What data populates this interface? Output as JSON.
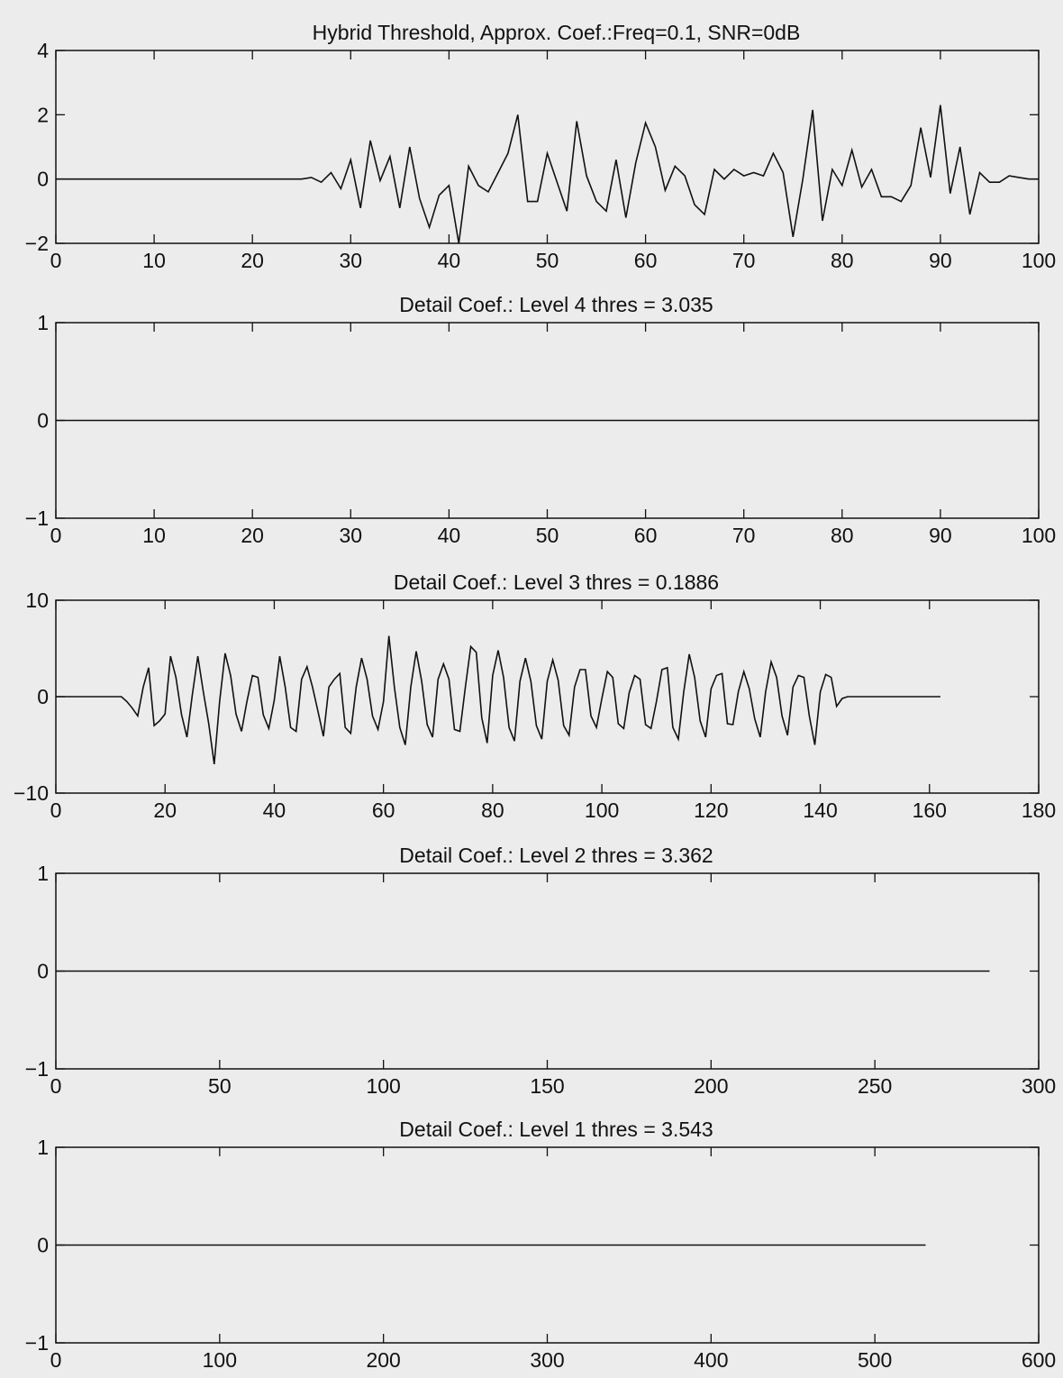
{
  "background": "#ececec",
  "line_color": "#111111",
  "chart_data": [
    {
      "type": "line",
      "title": "Hybrid Threshold, Approx. Coef.:Freq=0.1, SNR=0dB",
      "xlim": [
        0,
        100
      ],
      "ylim": [
        -2,
        4
      ],
      "xticks": [
        0,
        10,
        20,
        30,
        40,
        50,
        60,
        70,
        80,
        90,
        100
      ],
      "yticks": [
        -2,
        0,
        2,
        4
      ],
      "grid": false,
      "x": [
        0,
        1,
        2,
        3,
        4,
        5,
        6,
        7,
        8,
        9,
        10,
        11,
        12,
        13,
        14,
        15,
        16,
        17,
        18,
        19,
        20,
        21,
        22,
        23,
        24,
        25,
        26,
        27,
        28,
        29,
        30,
        31,
        32,
        33,
        34,
        35,
        36,
        37,
        38,
        39,
        40,
        41,
        42,
        43,
        44,
        45,
        46,
        47,
        48,
        49,
        50,
        51,
        52,
        53,
        54,
        55,
        56,
        57,
        58,
        59,
        60,
        61,
        62,
        63,
        64,
        65,
        66,
        67,
        68,
        69,
        70,
        71,
        72,
        73,
        74,
        75,
        76,
        77,
        78,
        79,
        80,
        81,
        82,
        83,
        84,
        85,
        86,
        87,
        88,
        89,
        90,
        91,
        92,
        93,
        94,
        95,
        96,
        97,
        98,
        99,
        100
      ],
      "y": [
        0,
        0,
        0,
        0,
        0,
        0,
        0,
        0,
        0,
        0,
        0,
        0,
        0,
        0,
        0,
        0,
        0,
        0,
        0,
        0,
        0,
        0,
        0,
        0,
        0,
        0,
        0.05,
        -0.1,
        0.2,
        -0.3,
        0.6,
        -0.9,
        1.2,
        -0.05,
        0.7,
        -0.9,
        1.0,
        -0.6,
        -1.5,
        -0.5,
        -0.2,
        -2.0,
        0.4,
        -0.2,
        -0.4,
        0.2,
        0.8,
        2.0,
        -0.7,
        -0.7,
        0.8,
        -0.1,
        -1.0,
        1.8,
        0.1,
        -0.7,
        -1.0,
        0.6,
        -1.2,
        0.5,
        1.75,
        1.0,
        -0.35,
        0.4,
        0.1,
        -0.8,
        -1.1,
        0.3,
        0.0,
        0.3,
        0.1,
        0.2,
        0.1,
        0.8,
        0.2,
        -1.8,
        0.0,
        2.15,
        -1.3,
        0.3,
        -0.2,
        0.9,
        -0.25,
        0.3,
        -0.55,
        -0.55,
        -0.7,
        -0.2,
        1.6,
        0.05,
        2.3,
        -0.45,
        1.0,
        -1.1,
        0.2,
        -0.1,
        -0.1,
        0.1,
        0.05,
        0.0,
        0.0
      ]
    },
    {
      "type": "line",
      "title": "Detail Coef.: Level 4 thres = 3.035",
      "xlim": [
        0,
        100
      ],
      "ylim": [
        -1,
        1
      ],
      "xticks": [
        0,
        10,
        20,
        30,
        40,
        50,
        60,
        70,
        80,
        90,
        100
      ],
      "yticks": [
        -1,
        0,
        1
      ],
      "grid": false,
      "x": [
        0,
        100
      ],
      "y": [
        0,
        0
      ]
    },
    {
      "type": "line",
      "title": "Detail Coef.: Level 3 thres = 0.1886",
      "xlim": [
        0,
        180
      ],
      "ylim": [
        -10,
        10
      ],
      "xticks": [
        0,
        20,
        40,
        60,
        80,
        100,
        120,
        140,
        160,
        180
      ],
      "yticks": [
        -10,
        0,
        10
      ],
      "grid": false,
      "x": [
        0,
        12,
        13,
        14,
        15,
        16,
        17,
        18,
        19,
        20,
        21,
        22,
        23,
        24,
        25,
        26,
        27,
        28,
        29,
        30,
        31,
        32,
        33,
        34,
        35,
        36,
        37,
        38,
        39,
        40,
        41,
        42,
        43,
        44,
        45,
        46,
        47,
        48,
        49,
        50,
        51,
        52,
        53,
        54,
        55,
        56,
        57,
        58,
        59,
        60,
        61,
        62,
        63,
        64,
        65,
        66,
        67,
        68,
        69,
        70,
        71,
        72,
        73,
        74,
        75,
        76,
        77,
        78,
        79,
        80,
        81,
        82,
        83,
        84,
        85,
        86,
        87,
        88,
        89,
        90,
        91,
        92,
        93,
        94,
        95,
        96,
        97,
        98,
        99,
        100,
        101,
        102,
        103,
        104,
        105,
        106,
        107,
        108,
        109,
        110,
        111,
        112,
        113,
        114,
        115,
        116,
        117,
        118,
        119,
        120,
        121,
        122,
        123,
        124,
        125,
        126,
        127,
        128,
        129,
        130,
        131,
        132,
        133,
        134,
        135,
        136,
        137,
        138,
        139,
        140,
        141,
        142,
        143,
        144,
        145,
        146,
        162
      ],
      "y": [
        0,
        0,
        -0.5,
        -1.2,
        -2.0,
        1.0,
        3.0,
        -3.0,
        -2.5,
        -1.8,
        4.2,
        2.0,
        -1.8,
        -4.2,
        0.2,
        4.2,
        0.5,
        -2.8,
        -7.0,
        -0.5,
        4.5,
        2.2,
        -1.8,
        -3.6,
        -0.5,
        2.2,
        2.0,
        -1.9,
        -3.3,
        -0.4,
        4.2,
        1.0,
        -3.2,
        -3.6,
        1.8,
        3.1,
        1.0,
        -1.5,
        -4.1,
        1.0,
        1.8,
        2.4,
        -3.2,
        -3.8,
        1.0,
        4.0,
        1.8,
        -2.0,
        -3.4,
        -0.5,
        6.3,
        1.0,
        -3.2,
        -5.0,
        1.0,
        4.7,
        1.6,
        -2.9,
        -4.2,
        1.8,
        3.4,
        1.8,
        -3.4,
        -3.6,
        1.0,
        5.2,
        4.6,
        -2.2,
        -4.8,
        2.2,
        4.8,
        2.0,
        -3.2,
        -4.6,
        1.6,
        4.0,
        1.6,
        -3.0,
        -4.4,
        1.6,
        3.8,
        1.7,
        -3.0,
        -4.0,
        1.0,
        2.8,
        2.8,
        -2.0,
        -3.2,
        -0.2,
        2.6,
        2.0,
        -2.8,
        -3.3,
        0.4,
        2.2,
        1.8,
        -2.9,
        -3.3,
        -0.5,
        2.8,
        3.0,
        -3.2,
        -4.4,
        0.5,
        4.4,
        2.0,
        -2.5,
        -4.2,
        0.8,
        2.2,
        2.4,
        -2.8,
        -2.9,
        0.5,
        2.6,
        0.8,
        -2.3,
        -4.2,
        0.5,
        3.6,
        2.0,
        -2.0,
        -4.0,
        1.0,
        2.2,
        2.0,
        -2.0,
        -5.0,
        0.5,
        2.3,
        2.0,
        -1.0,
        -0.2,
        0,
        0,
        0
      ]
    },
    {
      "type": "line",
      "title": "Detail Coef.: Level 2 thres = 3.362",
      "xlim": [
        0,
        300
      ],
      "ylim": [
        -1,
        1
      ],
      "xticks": [
        0,
        50,
        100,
        150,
        200,
        250,
        300
      ],
      "yticks": [
        -1,
        0,
        1
      ],
      "grid": false,
      "x": [
        0,
        285
      ],
      "y": [
        0,
        0
      ]
    },
    {
      "type": "line",
      "title": "Detail Coef.: Level 1 thres = 3.543",
      "xlim": [
        0,
        600
      ],
      "ylim": [
        -1,
        1
      ],
      "xticks": [
        0,
        100,
        200,
        300,
        400,
        500,
        600
      ],
      "yticks": [
        -1,
        0,
        1
      ],
      "grid": false,
      "x": [
        0,
        531
      ],
      "y": [
        0,
        0
      ]
    }
  ]
}
